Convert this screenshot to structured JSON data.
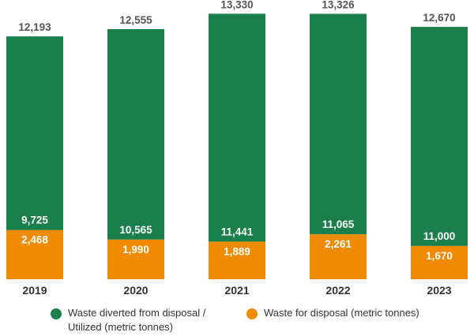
{
  "chart_data": {
    "type": "bar",
    "stacked": true,
    "categories": [
      "2019",
      "2020",
      "2021",
      "2022",
      "2023"
    ],
    "series": [
      {
        "name": "Waste for disposal (metric tonnes)",
        "values": [
          2468,
          1990,
          1889,
          2261,
          1670
        ],
        "color": "#f08a00"
      },
      {
        "name": "Waste diverted from disposal / Utilized (metric tonnes)",
        "values": [
          9725,
          10565,
          11441,
          11065,
          11000
        ],
        "color": "#1a7f4a"
      }
    ],
    "totals": [
      12193,
      12555,
      13330,
      13326,
      12670
    ],
    "legend_position": "bottom",
    "grid": false,
    "ylim": [
      0,
      13500
    ]
  },
  "labels": {
    "totals": [
      "12,193",
      "12,555",
      "13,330",
      "13,326",
      "12,670"
    ],
    "diverted": [
      "9,725",
      "10,565",
      "11,441",
      "11,065",
      "11,000"
    ],
    "disposal": [
      "2,468",
      "1,990",
      "1,889",
      "2,261",
      "1,670"
    ]
  },
  "legend": {
    "diverted": "Waste diverted from disposal / Utilized (metric tonnes)",
    "disposal": "Waste for disposal (metric tonnes)"
  }
}
